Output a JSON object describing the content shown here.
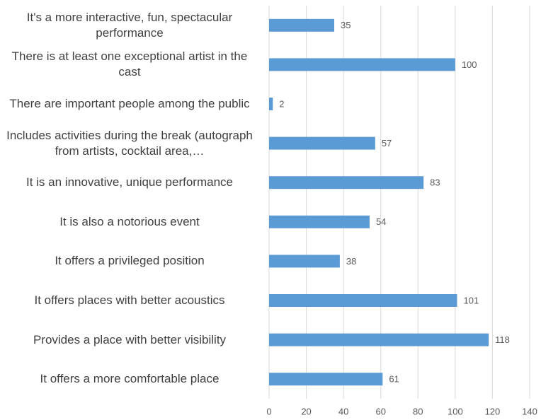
{
  "chart_data": {
    "type": "barh",
    "categories": [
      "It's a more interactive, fun, spectacular performance",
      "There is at least one exceptional artist in the cast",
      "There are important people among the public",
      "Includes activities during the break (autograph from artists, cocktail area,…",
      "It is an innovative, unique performance",
      "It is also a notorious event",
      "It offers a privileged position",
      "It offers places with better acoustics",
      "Provides a place with better visibility",
      "It offers a more comfortable place"
    ],
    "values": [
      35,
      100,
      2,
      57,
      83,
      54,
      38,
      101,
      118,
      61
    ],
    "color": "#5b9bd5",
    "xlim": [
      0,
      140
    ],
    "xticks": [
      0,
      20,
      40,
      60,
      80,
      100,
      120,
      140
    ],
    "grid": true
  }
}
